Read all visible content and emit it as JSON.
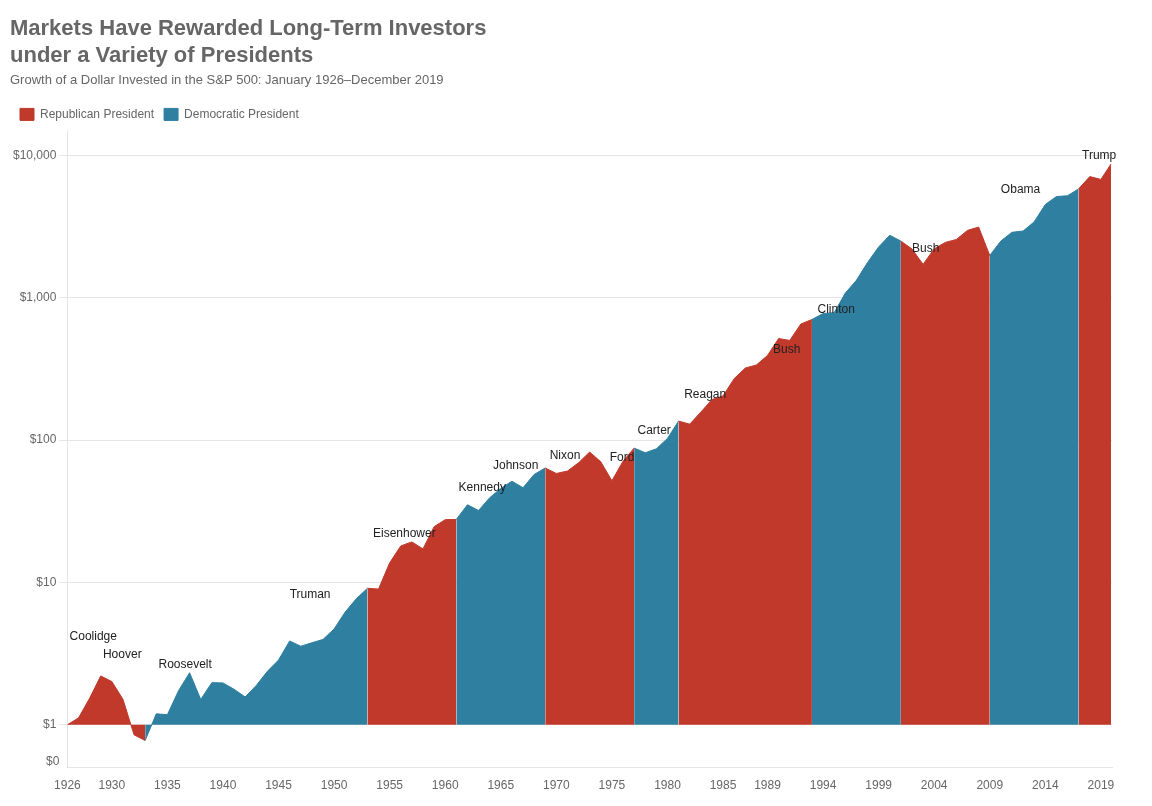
{
  "chart_data": {
    "type": "area",
    "title": [
      "Markets Have Rewarded Long-Term Investors",
      "under a Variety of Presidents"
    ],
    "subtitle": "Growth of a Dollar Invested in the S&P 500: January 1926–December 2019",
    "log": "y",
    "grid": "y",
    "legend": "upper left",
    "baseline": 1,
    "xlim": [
      1926,
      2020
    ],
    "xticks": [
      1926,
      1930,
      1935,
      1940,
      1945,
      1950,
      1955,
      1960,
      1965,
      1970,
      1975,
      1980,
      1985,
      1989,
      1994,
      1999,
      2004,
      2009,
      2014,
      2019
    ],
    "ylim": [
      0.5,
      15000
    ],
    "yticks": [
      {
        "value": 1,
        "label": "$1"
      },
      {
        "value": 10,
        "label": "$10"
      },
      {
        "value": 100,
        "label": "$100"
      },
      {
        "value": 1000,
        "label": "$1,000"
      },
      {
        "value": 10000,
        "label": "$10,000"
      }
    ],
    "x": [
      1926,
      1927,
      1928,
      1929,
      1930,
      1931,
      1932,
      1933,
      1934,
      1935,
      1936,
      1937,
      1938,
      1939,
      1940,
      1941,
      1942,
      1943,
      1944,
      1945,
      1946,
      1947,
      1948,
      1949,
      1950,
      1951,
      1952,
      1953,
      1954,
      1955,
      1956,
      1957,
      1958,
      1959,
      1960,
      1961,
      1962,
      1963,
      1964,
      1965,
      1966,
      1967,
      1968,
      1969,
      1970,
      1971,
      1972,
      1973,
      1974,
      1975,
      1976,
      1977,
      1978,
      1979,
      1980,
      1981,
      1982,
      1983,
      1984,
      1985,
      1986,
      1987,
      1988,
      1989,
      1990,
      1991,
      1992,
      1993,
      1994,
      1995,
      1996,
      1997,
      1998,
      1999,
      2000,
      2001,
      2002,
      2003,
      2004,
      2005,
      2006,
      2007,
      2008,
      2009,
      2010,
      2011,
      2012,
      2013,
      2014,
      2015,
      2016,
      2017,
      2018,
      2019,
      2019.916667
    ],
    "series": [
      {
        "name": "Republican President",
        "color": "#c0392b",
        "values": [
          1,
          1.116,
          1.53338,
          2.20194,
          2.01257,
          1.50943,
          0.849809,
          0.775026,
          null,
          null,
          null,
          null,
          null,
          null,
          null,
          null,
          null,
          null,
          null,
          null,
          null,
          null,
          null,
          null,
          null,
          null,
          null,
          9.09887,
          8.98059,
          13.7223,
          18.0586,
          19.2685,
          17.2068,
          24.6573,
          27.6162,
          27.7267,
          null,
          null,
          null,
          null,
          null,
          null,
          null,
          63.715,
          58.2992,
          60.6312,
          69.3014,
          82.4687,
          70.3458,
          51.7745,
          71.0346,
          87.8698,
          null,
          null,
          null,
          136.015,
          129.487,
          157.197,
          192.566,
          204.505,
          270.356,
          320.642,
          337.316,
          393.647,
          517.646,
          501.599,
          654.085,
          703.796,
          null,
          null,
          null,
          null,
          null,
          null,
          null,
          2501.24,
          2203.59,
          1716.6,
          2209.26,
          2450.07,
          2570.13,
          2976.21,
          3139.9,
          1981.28,
          null,
          null,
          null,
          null,
          null,
          null,
          null,
          5830.19,
          7101.17,
          6788.72,
          8719.67
        ]
      },
      {
        "name": "Democratic President",
        "color": "#2e7fa0",
        "values": [
          null,
          null,
          null,
          null,
          null,
          null,
          null,
          0.775026,
          1.19354,
          1.17683,
          1.73347,
          2.31938,
          1.5076,
          1.97646,
          1.96856,
          1.77564,
          1.56789,
          1.88931,
          2.37486,
          2.84745,
          3.87823,
          3.56409,
          3.76725,
          3.97445,
          4.70575,
          6.19747,
          7.68486,
          9.09887,
          null,
          null,
          null,
          null,
          null,
          null,
          null,
          27.7267,
          35.1297,
          32.0383,
          39.343,
          45.7559,
          51.4297,
          46.2867,
          57.3492,
          63.715,
          null,
          null,
          null,
          null,
          null,
          null,
          null,
          87.8698,
          81.4553,
          86.8314,
          102.808,
          136.015,
          null,
          null,
          null,
          null,
          null,
          null,
          null,
          null,
          null,
          null,
          null,
          703.796,
          774.879,
          784.952,
          1078.52,
          1326.59,
          1768.34,
          2274.08,
          2751.64,
          2501.24,
          null,
          null,
          null,
          null,
          null,
          null,
          null,
          1981.28,
          2506.31,
          2884.77,
          2945.35,
          3416.6,
          4523.58,
          5143.31,
          5210.18,
          5830.19,
          null,
          null,
          null
        ]
      }
    ],
    "annotations": [
      {
        "text": "Coolidge",
        "x": 1926.2,
        "y": 3.8
      },
      {
        "text": "Hoover",
        "x": 1929.2,
        "y": 2.8
      },
      {
        "text": "Roosevelt",
        "x": 1934.2,
        "y": 2.4
      },
      {
        "text": "Truman",
        "x": 1946.0,
        "y": 7.5
      },
      {
        "text": "Eisenhower",
        "x": 1953.5,
        "y": 20.0
      },
      {
        "text": "Kennedy",
        "x": 1961.2,
        "y": 42.0
      },
      {
        "text": "Johnson",
        "x": 1964.3,
        "y": 60.0
      },
      {
        "text": "Nixon",
        "x": 1969.4,
        "y": 70.0
      },
      {
        "text": "Ford",
        "x": 1974.8,
        "y": 68.0
      },
      {
        "text": "Carter",
        "x": 1977.3,
        "y": 105.0
      },
      {
        "text": "Reagan",
        "x": 1981.5,
        "y": 190.0
      },
      {
        "text": "Bush",
        "x": 1989.5,
        "y": 390.0
      },
      {
        "text": "Clinton",
        "x": 1993.5,
        "y": 750.0
      },
      {
        "text": "Bush",
        "x": 2002.0,
        "y": 2000.0
      },
      {
        "text": "Obama",
        "x": 2010.0,
        "y": 5200.0
      },
      {
        "text": "Trump",
        "x": 2017.3,
        "y": 9000.0
      },
      {
        "text": "$0",
        "x": 1926,
        "y": 0.5
      }
    ]
  }
}
